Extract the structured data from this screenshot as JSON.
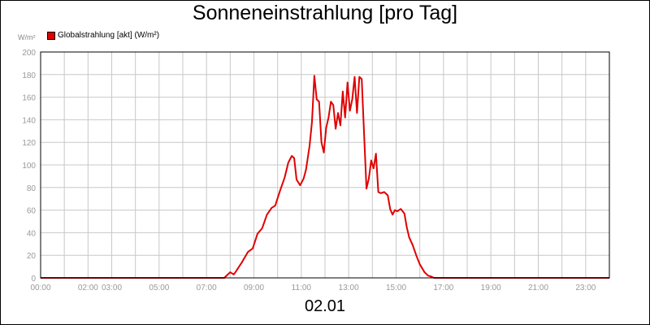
{
  "title": "Sonneneinstrahlung [pro Tag]",
  "date_label": "02.01",
  "colors": {
    "series": "#e00000",
    "grid": "#c8c8c8",
    "axis": "#000000",
    "tick_text": "#999999"
  },
  "chart_data": {
    "type": "line",
    "title": "Sonneneinstrahlung [pro Tag]",
    "xlabel": "02.01",
    "ylabel": "W/m²",
    "ylim": [
      0,
      200
    ],
    "xlim": [
      0,
      24
    ],
    "grid": true,
    "legend_position": "top-left",
    "yticks": [
      0,
      20,
      40,
      60,
      80,
      100,
      120,
      140,
      160,
      180,
      200
    ],
    "yticks_labels": [
      "0",
      "20",
      "40",
      "60",
      "80",
      "100",
      "120",
      "140",
      "160",
      "180",
      "200"
    ],
    "xticks_labels": [
      {
        "x": 0,
        "label": "00:00"
      },
      {
        "x": 2,
        "label": "02:00"
      },
      {
        "x": 3,
        "label": "03:00"
      },
      {
        "x": 5,
        "label": "05:00"
      },
      {
        "x": 7,
        "label": "07:00"
      },
      {
        "x": 9,
        "label": "09:00"
      },
      {
        "x": 11,
        "label": "11:00"
      },
      {
        "x": 13,
        "label": "13:00"
      },
      {
        "x": 15,
        "label": "15:00"
      },
      {
        "x": 17,
        "label": "17:00"
      },
      {
        "x": 19,
        "label": "19:00"
      },
      {
        "x": 21,
        "label": "21:00"
      },
      {
        "x": 23,
        "label": "23:00"
      }
    ],
    "series": [
      {
        "name": "Globalstrahlung [akt] (W/m²)",
        "x": [
          0,
          7.75,
          8.0,
          8.15,
          8.25,
          8.5,
          8.75,
          8.95,
          9.15,
          9.35,
          9.55,
          9.75,
          9.9,
          10.1,
          10.3,
          10.45,
          10.6,
          10.7,
          10.8,
          10.95,
          11.1,
          11.2,
          11.3,
          11.35,
          11.45,
          11.55,
          11.65,
          11.75,
          11.85,
          11.95,
          12.05,
          12.15,
          12.25,
          12.35,
          12.45,
          12.55,
          12.65,
          12.75,
          12.85,
          12.95,
          13.05,
          13.15,
          13.25,
          13.35,
          13.45,
          13.55,
          13.65,
          13.75,
          13.85,
          13.95,
          14.05,
          14.15,
          14.25,
          14.35,
          14.5,
          14.65,
          14.75,
          14.85,
          14.95,
          15.05,
          15.2,
          15.35,
          15.45,
          15.55,
          15.7,
          15.85,
          16.0,
          16.2,
          16.35,
          16.5,
          16.6,
          16.75,
          17.0,
          24
        ],
        "values": [
          0,
          0,
          5,
          3,
          6,
          14,
          23,
          26,
          39,
          44,
          56,
          62,
          64,
          77,
          89,
          102,
          108,
          106,
          87,
          82,
          88,
          96,
          110,
          117,
          138,
          179,
          158,
          156,
          120,
          111,
          133,
          142,
          156,
          153,
          132,
          146,
          135,
          165,
          142,
          173,
          148,
          158,
          178,
          146,
          178,
          176,
          127,
          79,
          88,
          104,
          97,
          110,
          76,
          75,
          76,
          73,
          61,
          56,
          60,
          59,
          61,
          57,
          45,
          36,
          29,
          20,
          12,
          5,
          2,
          1,
          0,
          0,
          0,
          0
        ]
      }
    ]
  }
}
